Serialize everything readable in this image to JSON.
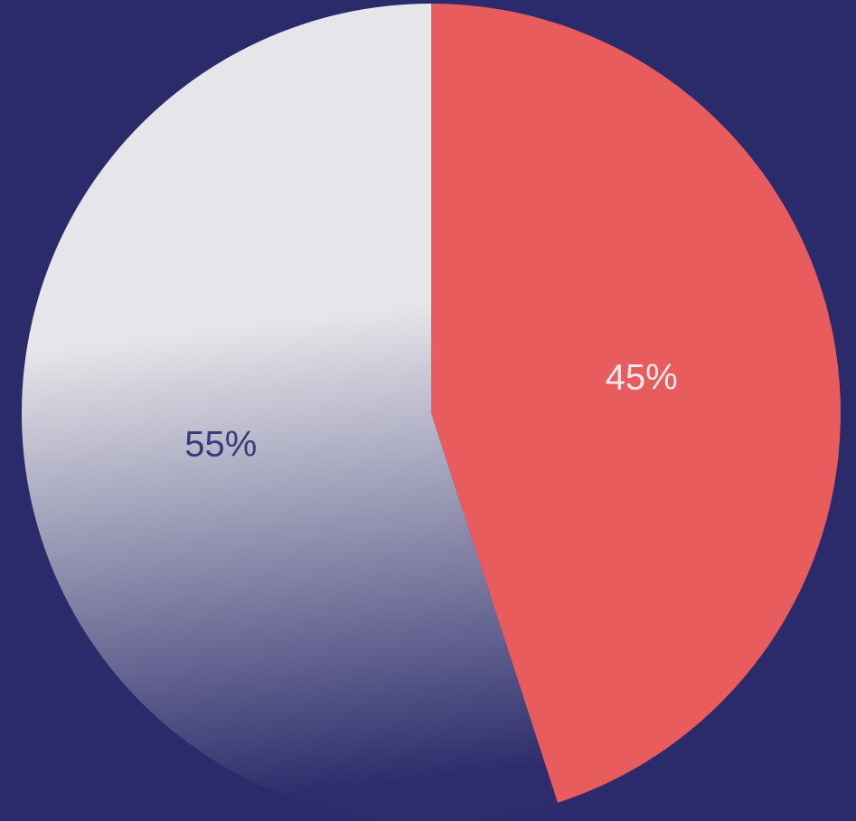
{
  "chart_data": {
    "type": "pie",
    "slices": [
      {
        "label": "45%",
        "value": 45,
        "color": "#e85c5e",
        "label_color": "#f4e9ea"
      },
      {
        "label": "55%",
        "value": 55,
        "color_top": "#e6e6ea",
        "color_bottom": "#2e2d6c",
        "label_color": "#3b3a7a"
      }
    ],
    "legend": "none",
    "background": "#2b2a6b"
  }
}
